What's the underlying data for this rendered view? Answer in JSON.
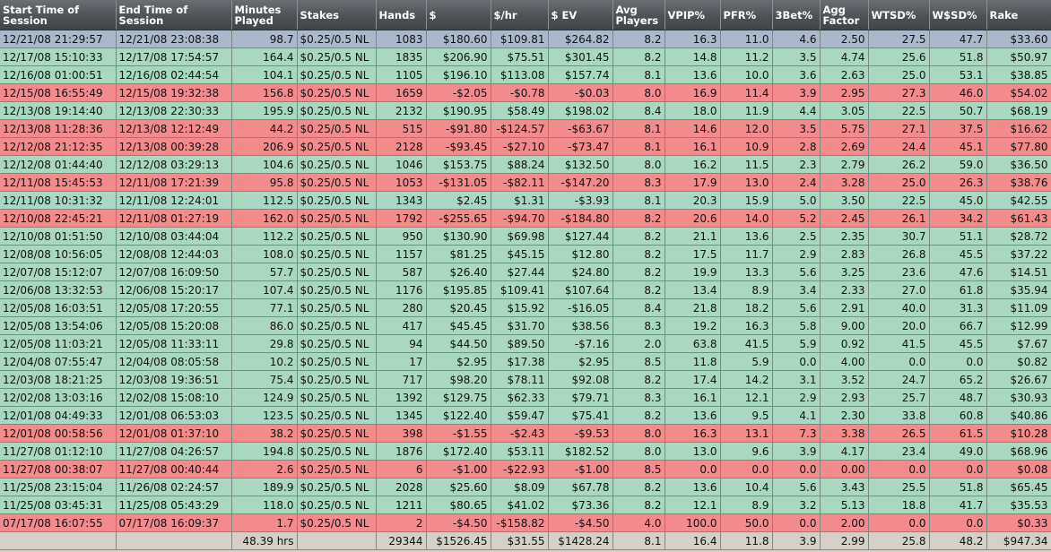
{
  "columns": [
    "Start Time of Session",
    "End Time of Session",
    "Minutes Played",
    "Stakes",
    "Hands",
    "$",
    "$/hr",
    "$ EV",
    "Avg Players",
    "VPIP%",
    "PFR%",
    "3Bet%",
    "Agg Factor",
    "WTSD%",
    "W$SD%",
    "Rake"
  ],
  "rows": [
    {
      "status": "selected",
      "cells": [
        "12/21/08 21:29:57",
        "12/21/08 23:08:38",
        "98.7",
        "$0.25/0.5 NL",
        "1083",
        "$180.60",
        "$109.81",
        "$264.82",
        "8.2",
        "16.3",
        "11.0",
        "4.6",
        "2.50",
        "27.5",
        "47.7",
        "$33.60"
      ]
    },
    {
      "status": "win",
      "cells": [
        "12/17/08 15:10:33",
        "12/17/08 17:54:57",
        "164.4",
        "$0.25/0.5 NL",
        "1835",
        "$206.90",
        "$75.51",
        "$301.45",
        "8.2",
        "14.8",
        "11.2",
        "3.5",
        "4.74",
        "25.6",
        "51.8",
        "$50.97"
      ]
    },
    {
      "status": "win",
      "cells": [
        "12/16/08 01:00:51",
        "12/16/08 02:44:54",
        "104.1",
        "$0.25/0.5 NL",
        "1105",
        "$196.10",
        "$113.08",
        "$157.74",
        "8.1",
        "13.6",
        "10.0",
        "3.6",
        "2.63",
        "25.0",
        "53.1",
        "$38.85"
      ]
    },
    {
      "status": "loss",
      "cells": [
        "12/15/08 16:55:49",
        "12/15/08 19:32:38",
        "156.8",
        "$0.25/0.5 NL",
        "1659",
        "-$2.05",
        "-$0.78",
        "-$0.03",
        "8.0",
        "16.9",
        "11.4",
        "3.9",
        "2.95",
        "27.3",
        "46.0",
        "$54.02"
      ]
    },
    {
      "status": "win",
      "cells": [
        "12/13/08 19:14:40",
        "12/13/08 22:30:33",
        "195.9",
        "$0.25/0.5 NL",
        "2132",
        "$190.95",
        "$58.49",
        "$198.02",
        "8.4",
        "18.0",
        "11.9",
        "4.4",
        "3.05",
        "22.5",
        "50.7",
        "$68.19"
      ]
    },
    {
      "status": "loss",
      "cells": [
        "12/13/08 11:28:36",
        "12/13/08 12:12:49",
        "44.2",
        "$0.25/0.5 NL",
        "515",
        "-$91.80",
        "-$124.57",
        "-$63.67",
        "8.1",
        "14.6",
        "12.0",
        "3.5",
        "5.75",
        "27.1",
        "37.5",
        "$16.62"
      ]
    },
    {
      "status": "loss",
      "cells": [
        "12/12/08 21:12:35",
        "12/13/08 00:39:28",
        "206.9",
        "$0.25/0.5 NL",
        "2128",
        "-$93.45",
        "-$27.10",
        "-$73.47",
        "8.1",
        "16.1",
        "10.9",
        "2.8",
        "2.69",
        "24.4",
        "45.1",
        "$77.80"
      ]
    },
    {
      "status": "win",
      "cells": [
        "12/12/08 01:44:40",
        "12/12/08 03:29:13",
        "104.6",
        "$0.25/0.5 NL",
        "1046",
        "$153.75",
        "$88.24",
        "$132.50",
        "8.0",
        "16.2",
        "11.5",
        "2.3",
        "2.79",
        "26.2",
        "59.0",
        "$36.50"
      ]
    },
    {
      "status": "loss",
      "cells": [
        "12/11/08 15:45:53",
        "12/11/08 17:21:39",
        "95.8",
        "$0.25/0.5 NL",
        "1053",
        "-$131.05",
        "-$82.11",
        "-$147.20",
        "8.3",
        "17.9",
        "13.0",
        "2.4",
        "3.28",
        "25.0",
        "26.3",
        "$38.76"
      ]
    },
    {
      "status": "win",
      "cells": [
        "12/11/08 10:31:32",
        "12/11/08 12:24:01",
        "112.5",
        "$0.25/0.5 NL",
        "1343",
        "$2.45",
        "$1.31",
        "-$3.93",
        "8.1",
        "20.3",
        "15.9",
        "5.0",
        "3.50",
        "22.5",
        "45.0",
        "$42.55"
      ]
    },
    {
      "status": "loss",
      "cells": [
        "12/10/08 22:45:21",
        "12/11/08 01:27:19",
        "162.0",
        "$0.25/0.5 NL",
        "1792",
        "-$255.65",
        "-$94.70",
        "-$184.80",
        "8.2",
        "20.6",
        "14.0",
        "5.2",
        "2.45",
        "26.1",
        "34.2",
        "$61.43"
      ]
    },
    {
      "status": "win",
      "cells": [
        "12/10/08 01:51:50",
        "12/10/08 03:44:04",
        "112.2",
        "$0.25/0.5 NL",
        "950",
        "$130.90",
        "$69.98",
        "$127.44",
        "8.2",
        "21.1",
        "13.6",
        "2.5",
        "2.35",
        "30.7",
        "51.1",
        "$28.72"
      ]
    },
    {
      "status": "win",
      "cells": [
        "12/08/08 10:56:05",
        "12/08/08 12:44:03",
        "108.0",
        "$0.25/0.5 NL",
        "1157",
        "$81.25",
        "$45.15",
        "$12.80",
        "8.2",
        "17.5",
        "11.7",
        "2.9",
        "2.83",
        "26.8",
        "45.5",
        "$37.22"
      ]
    },
    {
      "status": "win",
      "cells": [
        "12/07/08 15:12:07",
        "12/07/08 16:09:50",
        "57.7",
        "$0.25/0.5 NL",
        "587",
        "$26.40",
        "$27.44",
        "$24.80",
        "8.2",
        "19.9",
        "13.3",
        "5.6",
        "3.25",
        "23.6",
        "47.6",
        "$14.51"
      ]
    },
    {
      "status": "win",
      "cells": [
        "12/06/08 13:32:53",
        "12/06/08 15:20:17",
        "107.4",
        "$0.25/0.5 NL",
        "1176",
        "$195.85",
        "$109.41",
        "$107.64",
        "8.2",
        "13.4",
        "8.9",
        "3.4",
        "2.33",
        "27.0",
        "61.8",
        "$35.94"
      ]
    },
    {
      "status": "win",
      "cells": [
        "12/05/08 16:03:51",
        "12/05/08 17:20:55",
        "77.1",
        "$0.25/0.5 NL",
        "280",
        "$20.45",
        "$15.92",
        "-$16.05",
        "8.4",
        "21.8",
        "18.2",
        "5.6",
        "2.91",
        "40.0",
        "31.3",
        "$11.09"
      ]
    },
    {
      "status": "win",
      "cells": [
        "12/05/08 13:54:06",
        "12/05/08 15:20:08",
        "86.0",
        "$0.25/0.5 NL",
        "417",
        "$45.45",
        "$31.70",
        "$38.56",
        "8.3",
        "19.2",
        "16.3",
        "5.8",
        "9.00",
        "20.0",
        "66.7",
        "$12.99"
      ]
    },
    {
      "status": "win",
      "cells": [
        "12/05/08 11:03:21",
        "12/05/08 11:33:11",
        "29.8",
        "$0.25/0.5 NL",
        "94",
        "$44.50",
        "$89.50",
        "-$7.16",
        "2.0",
        "63.8",
        "41.5",
        "5.9",
        "0.92",
        "41.5",
        "45.5",
        "$7.67"
      ]
    },
    {
      "status": "win",
      "cells": [
        "12/04/08 07:55:47",
        "12/04/08 08:05:58",
        "10.2",
        "$0.25/0.5 NL",
        "17",
        "$2.95",
        "$17.38",
        "$2.95",
        "8.5",
        "11.8",
        "5.9",
        "0.0",
        "4.00",
        "0.0",
        "0.0",
        "$0.82"
      ]
    },
    {
      "status": "win",
      "cells": [
        "12/03/08 18:21:25",
        "12/03/08 19:36:51",
        "75.4",
        "$0.25/0.5 NL",
        "717",
        "$98.20",
        "$78.11",
        "$92.08",
        "8.2",
        "17.4",
        "14.2",
        "3.1",
        "3.52",
        "24.7",
        "65.2",
        "$26.67"
      ]
    },
    {
      "status": "win",
      "cells": [
        "12/02/08 13:03:16",
        "12/02/08 15:08:10",
        "124.9",
        "$0.25/0.5 NL",
        "1392",
        "$129.75",
        "$62.33",
        "$79.71",
        "8.3",
        "16.1",
        "12.1",
        "2.9",
        "2.93",
        "25.7",
        "48.7",
        "$30.93"
      ]
    },
    {
      "status": "win",
      "cells": [
        "12/01/08 04:49:33",
        "12/01/08 06:53:03",
        "123.5",
        "$0.25/0.5 NL",
        "1345",
        "$122.40",
        "$59.47",
        "$75.41",
        "8.2",
        "13.6",
        "9.5",
        "4.1",
        "2.30",
        "33.8",
        "60.8",
        "$40.86"
      ]
    },
    {
      "status": "loss",
      "cells": [
        "12/01/08 00:58:56",
        "12/01/08 01:37:10",
        "38.2",
        "$0.25/0.5 NL",
        "398",
        "-$1.55",
        "-$2.43",
        "-$9.53",
        "8.0",
        "16.3",
        "13.1",
        "7.3",
        "3.38",
        "26.5",
        "61.5",
        "$10.28"
      ]
    },
    {
      "status": "win",
      "cells": [
        "11/27/08 01:12:10",
        "11/27/08 04:26:57",
        "194.8",
        "$0.25/0.5 NL",
        "1876",
        "$172.40",
        "$53.11",
        "$182.52",
        "8.0",
        "13.0",
        "9.6",
        "3.9",
        "4.17",
        "23.4",
        "49.0",
        "$68.96"
      ]
    },
    {
      "status": "loss",
      "cells": [
        "11/27/08 00:38:07",
        "11/27/08 00:40:44",
        "2.6",
        "$0.25/0.5 NL",
        "6",
        "-$1.00",
        "-$22.93",
        "-$1.00",
        "8.5",
        "0.0",
        "0.0",
        "0.0",
        "0.00",
        "0.0",
        "0.0",
        "$0.08"
      ]
    },
    {
      "status": "win",
      "cells": [
        "11/25/08 23:15:04",
        "11/26/08 02:24:57",
        "189.9",
        "$0.25/0.5 NL",
        "2028",
        "$25.60",
        "$8.09",
        "$67.78",
        "8.2",
        "13.6",
        "10.4",
        "5.6",
        "3.43",
        "25.5",
        "51.8",
        "$65.45"
      ]
    },
    {
      "status": "win",
      "cells": [
        "11/25/08 03:45:31",
        "11/25/08 05:43:29",
        "118.0",
        "$0.25/0.5 NL",
        "1211",
        "$80.65",
        "$41.02",
        "$73.36",
        "8.2",
        "12.1",
        "8.9",
        "3.2",
        "5.13",
        "18.8",
        "41.7",
        "$35.53"
      ]
    },
    {
      "status": "loss",
      "cells": [
        "07/17/08 16:07:55",
        "07/17/08 16:09:37",
        "1.7",
        "$0.25/0.5 NL",
        "2",
        "-$4.50",
        "-$158.82",
        "-$4.50",
        "4.0",
        "100.0",
        "50.0",
        "0.0",
        "2.00",
        "0.0",
        "0.0",
        "$0.33"
      ]
    }
  ],
  "totals": [
    "",
    "",
    "48.39 hrs",
    "",
    "29344",
    "$1526.45",
    "$31.55",
    "$1428.24",
    "8.1",
    "16.4",
    "11.8",
    "3.9",
    "2.99",
    "25.8",
    "48.2",
    "$947.34"
  ],
  "colors": {
    "win_row": "#a8d8bf",
    "loss_row": "#f28c8c",
    "selected_row": "#a9b9c9",
    "header": "#4d5256",
    "positive_total": "#1d7a1d"
  }
}
